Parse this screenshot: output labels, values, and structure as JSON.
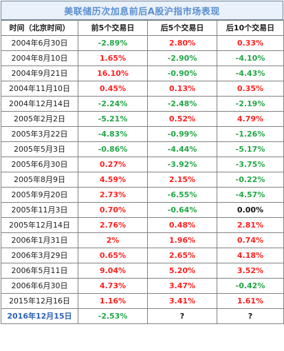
{
  "title": "美联储历次加息前后A股沪指市场表现",
  "columns": [
    "时间（北京时间）",
    "前5个交易日",
    "后5个交易日",
    "后10个交易日"
  ],
  "colors": {
    "up": "#ff1f1f",
    "down": "#21a645",
    "flat": "#111111",
    "highlight_date": "#2f67c9",
    "title": "#5b8fd0",
    "title_bg": "#eaf1fa"
  },
  "rows": [
    {
      "date": "2004年6月30日",
      "before5": "-2.89%",
      "after5": "2.80%",
      "after10": "0.33%",
      "c": [
        "green",
        "red",
        "red"
      ]
    },
    {
      "date": "2004年8月10日",
      "before5": "1.65%",
      "after5": "-2.90%",
      "after10": "-4.10%",
      "c": [
        "red",
        "green",
        "green"
      ]
    },
    {
      "date": "2004年9月21日",
      "before5": "16.10%",
      "after5": "-0.90%",
      "after10": "-4.43%",
      "c": [
        "red",
        "green",
        "green"
      ]
    },
    {
      "date": "2004年11月10日",
      "before5": "0.45%",
      "after5": "0.13%",
      "after10": "0.35%",
      "c": [
        "red",
        "red",
        "red"
      ]
    },
    {
      "date": "2004年12月14日",
      "before5": "-2.24%",
      "after5": "-2.48%",
      "after10": "-2.19%",
      "c": [
        "green",
        "green",
        "green"
      ]
    },
    {
      "date": "2005年2月2日",
      "before5": "-5.21%",
      "after5": "0.52%",
      "after10": "4.79%",
      "c": [
        "green",
        "red",
        "red"
      ]
    },
    {
      "date": "2005年3月22日",
      "before5": "-4.83%",
      "after5": "-0.99%",
      "after10": "-1.26%",
      "c": [
        "green",
        "green",
        "green"
      ]
    },
    {
      "date": "2005年5月3日",
      "before5": "-0.86%",
      "after5": "-4.44%",
      "after10": "-5.17%",
      "c": [
        "green",
        "green",
        "green"
      ]
    },
    {
      "date": "2005年6月30日",
      "before5": "0.27%",
      "after5": "-3.92%",
      "after10": "-3.75%",
      "c": [
        "red",
        "green",
        "green"
      ]
    },
    {
      "date": "2005年8月9日",
      "before5": "4.59%",
      "after5": "2.15%",
      "after10": "-0.22%",
      "c": [
        "red",
        "red",
        "green"
      ]
    },
    {
      "date": "2005年9月20日",
      "before5": "2.73%",
      "after5": "-6.55%",
      "after10": "-4.57%",
      "c": [
        "red",
        "green",
        "green"
      ]
    },
    {
      "date": "2005年11月3日",
      "before5": "0.70%",
      "after5": "-0.64%",
      "after10": "0.00%",
      "c": [
        "red",
        "green",
        "black"
      ]
    },
    {
      "date": "2005年12月14日",
      "before5": "2.76%",
      "after5": "0.48%",
      "after10": "2.81%",
      "c": [
        "red",
        "red",
        "red"
      ]
    },
    {
      "date": "2006年1月31日",
      "before5": "2%",
      "after5": "1.96%",
      "after10": "0.74%",
      "c": [
        "red",
        "red",
        "red"
      ]
    },
    {
      "date": "2006年3月29日",
      "before5": "0.65%",
      "after5": "2.65%",
      "after10": "4.18%",
      "c": [
        "red",
        "red",
        "red"
      ]
    },
    {
      "date": "2006年5月11日",
      "before5": "9.04%",
      "after5": "5.20%",
      "after10": "3.52%",
      "c": [
        "red",
        "red",
        "red"
      ]
    },
    {
      "date": "2006年6月30日",
      "before5": "4.73%",
      "after5": "3.47%",
      "after10": "-0.42%",
      "c": [
        "red",
        "red",
        "green"
      ]
    },
    {
      "date": "2015年12月16日",
      "before5": "1.16%",
      "after5": "3.41%",
      "after10": "1.61%",
      "c": [
        "red",
        "red",
        "red"
      ]
    },
    {
      "date": "2016年12月15日",
      "before5": "-2.53%",
      "after5": "?",
      "after10": "?",
      "c": [
        "green",
        "black",
        "black"
      ]
    }
  ]
}
